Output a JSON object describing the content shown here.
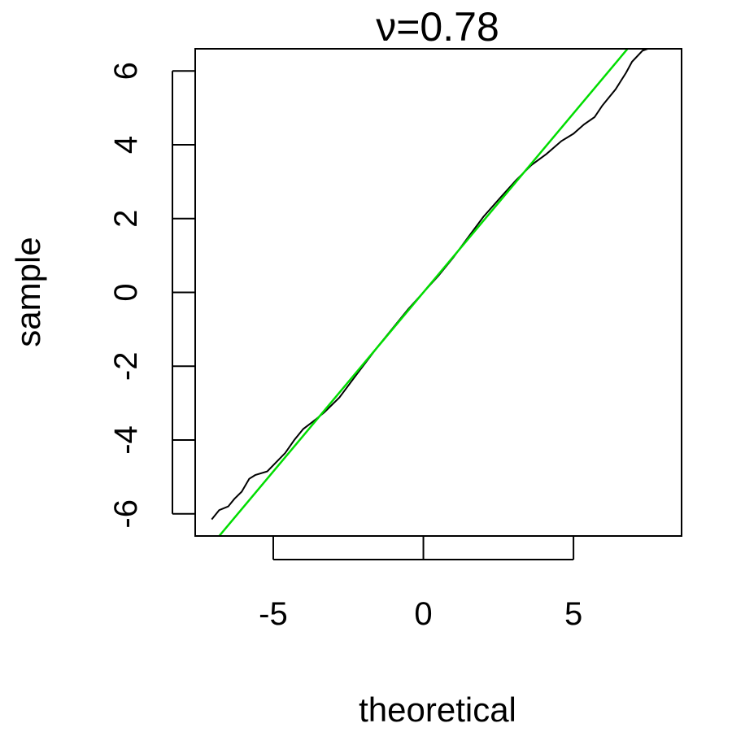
{
  "chart_data": {
    "type": "line",
    "title": "ν=0.78",
    "xlabel": "theoretical",
    "ylabel": "sample",
    "xlim": [
      -7.6,
      8.6
    ],
    "ylim": [
      -6.6,
      6.6
    ],
    "xticks": [
      -5,
      0,
      5
    ],
    "yticks": [
      -6,
      -4,
      -2,
      0,
      2,
      4,
      6
    ],
    "xtick_labels": [
      "-5",
      "0",
      "5"
    ],
    "ytick_labels": [
      "-6",
      "-4",
      "-2",
      "0",
      "2",
      "4",
      "6"
    ],
    "grid": false,
    "legend": "none",
    "series": [
      {
        "role": "sample quantiles",
        "color": "#000000",
        "x": [
          -7.05,
          -6.8,
          -6.5,
          -6.3,
          -6.05,
          -5.8,
          -5.6,
          -5.2,
          -4.9,
          -4.6,
          -4.3,
          -4.0,
          -3.6,
          -3.3,
          -2.8,
          -2.2,
          -1.5,
          -1.0,
          -0.5,
          0.0,
          0.5,
          1.0,
          1.5,
          2.0,
          2.6,
          3.1,
          3.6,
          4.1,
          4.6,
          5.0,
          5.35,
          5.7,
          5.95,
          6.1,
          6.4,
          6.75,
          6.95,
          7.3,
          7.55
        ],
        "y": [
          -6.15,
          -5.9,
          -5.8,
          -5.6,
          -5.4,
          -5.05,
          -4.95,
          -4.85,
          -4.6,
          -4.35,
          -4.0,
          -3.7,
          -3.45,
          -3.25,
          -2.85,
          -2.2,
          -1.45,
          -0.95,
          -0.45,
          0.0,
          0.45,
          0.95,
          1.5,
          2.05,
          2.6,
          3.05,
          3.45,
          3.75,
          4.1,
          4.3,
          4.55,
          4.75,
          5.05,
          5.2,
          5.5,
          5.95,
          6.25,
          6.55,
          6.62
        ]
      },
      {
        "role": "reference line",
        "color": "#00dd00",
        "x": [
          -6.8,
          6.8
        ],
        "y": [
          -6.6,
          6.6
        ]
      }
    ]
  }
}
